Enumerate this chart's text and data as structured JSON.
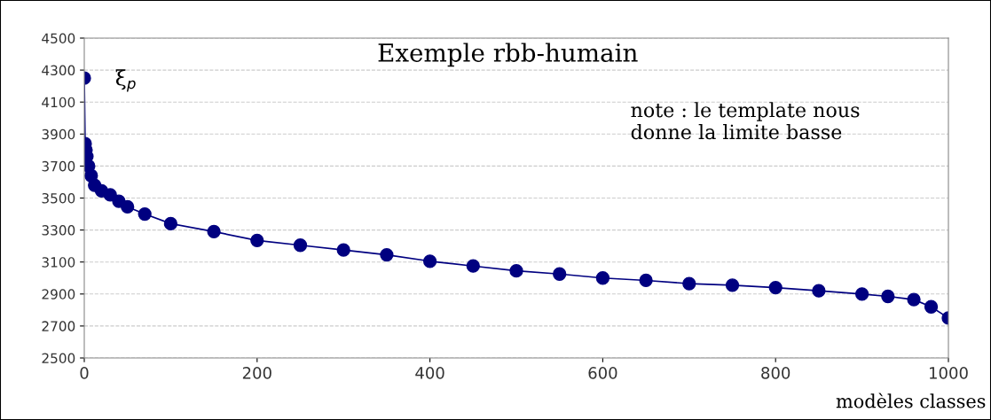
{
  "chart_data": {
    "type": "line",
    "title": "Exemple rbb-humain",
    "xlabel": "modèles classes",
    "annotations": [
      {
        "text": "ξ$_{p}$",
        "x": 0,
        "y": 4250
      },
      "note : le template nous\ndonne la limite basse"
    ],
    "series": [
      {
        "color": "#000080",
        "x": [
          0,
          1,
          2,
          3,
          5,
          8,
          12,
          20,
          30,
          40,
          50,
          70,
          100,
          150,
          200,
          250,
          300,
          350,
          400,
          450,
          500,
          550,
          600,
          650,
          700,
          750,
          800,
          850,
          900,
          930,
          960,
          980,
          1000
        ],
        "values": [
          4250,
          3840,
          3800,
          3760,
          3700,
          3640,
          3580,
          3545,
          3520,
          3480,
          3445,
          3400,
          3340,
          3290,
          3235,
          3205,
          3175,
          3145,
          3105,
          3075,
          3045,
          3025,
          3000,
          2985,
          2965,
          2955,
          2940,
          2920,
          2900,
          2885,
          2865,
          2820,
          2750
        ]
      }
    ],
    "marker": "circle",
    "xlim": [
      0,
      1000
    ],
    "xticks": [
      0,
      200,
      400,
      600,
      800,
      1000
    ],
    "ylim": [
      2500,
      4500
    ],
    "yticks": [
      2500,
      2700,
      2900,
      3100,
      3300,
      3500,
      3700,
      3900,
      4100,
      4300,
      4500
    ],
    "grid": "y",
    "legend": false
  }
}
